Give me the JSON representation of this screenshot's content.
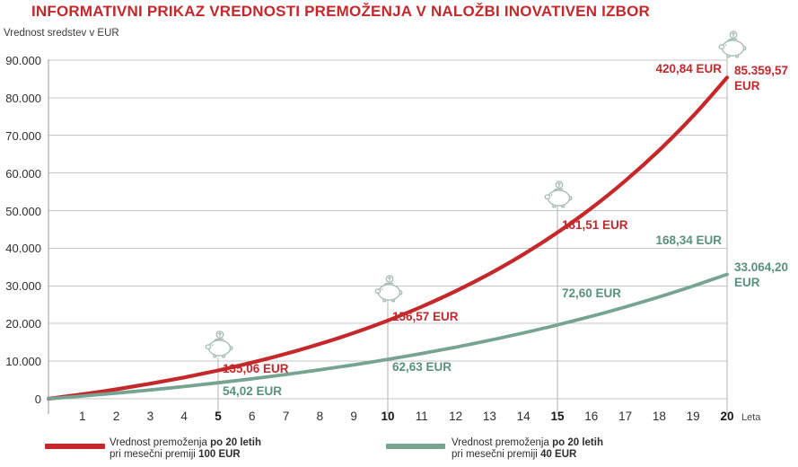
{
  "page": {
    "title": "INFORMATIVNI PRIKAZ VREDNOSTI PREMOŽENJA V NALOŽBI INOVATIVEN IZBOR",
    "y_axis_title": "Vrednost sredstev v EUR",
    "x_axis_unit": "Leta"
  },
  "colors": {
    "red": "#c5282b",
    "green": "#77a391",
    "green_text": "#57917e",
    "grid": "#c6c6c6",
    "axis": "#9a9a9a",
    "callout": "#b3b3b3",
    "piggy": "#a9bfb3",
    "tick_text": "#2f2f2f"
  },
  "chart_data": {
    "type": "line",
    "title": "INFORMATIVNI PRIKAZ VREDNOSTI PREMOŽENJA V NALOŽBI INOVATIVEN IZBOR",
    "xlabel": "Leta",
    "ylabel": "Vrednost sredstev v EUR",
    "x": [
      0,
      1,
      2,
      3,
      4,
      5,
      6,
      7,
      8,
      9,
      10,
      11,
      12,
      13,
      14,
      15,
      16,
      17,
      18,
      19,
      20
    ],
    "x_tick_labels": [
      "1",
      "2",
      "3",
      "4",
      "5",
      "6",
      "7",
      "8",
      "9",
      "10",
      "11",
      "12",
      "13",
      "14",
      "15",
      "16",
      "17",
      "18",
      "19",
      "20"
    ],
    "x_ticks_bold": [
      5,
      10,
      15,
      20
    ],
    "ylim": [
      0,
      90000
    ],
    "y_ticks": [
      0,
      10000,
      20000,
      30000,
      40000,
      50000,
      60000,
      70000,
      80000,
      90000
    ],
    "y_tick_labels": [
      "0",
      "10.000",
      "20.000",
      "30.000",
      "40.000",
      "50.000",
      "60.000",
      "70.000",
      "80.000",
      "90.000"
    ],
    "grid": "horizontal",
    "legend_position": "bottom",
    "series": [
      {
        "id": "red",
        "name": "Vrednost premoženja po 20 letih pri mesečni premiji 100 EUR",
        "color_key": "red",
        "values": [
          0,
          1185,
          2512,
          3998,
          5662,
          7526,
          9614,
          11953,
          14572,
          17505,
          20790,
          24470,
          28591,
          33207,
          38376,
          44166,
          50650,
          57913,
          66048,
          75158,
          85359.57
        ],
        "final_value_label": "85.359,57 EUR"
      },
      {
        "id": "green",
        "name": "Vrednost premoženja po 20 letih pri mesečni premiji 40 EUR",
        "color_key": "green",
        "values": [
          0,
          723,
          1503,
          2346,
          3256,
          4239,
          5300,
          6447,
          7685,
          9023,
          10467,
          12027,
          13711,
          15531,
          17496,
          19618,
          21910,
          24385,
          27059,
          29946,
          33064.2
        ],
        "final_value_label": "33.064,20 EUR"
      }
    ],
    "annotations": [
      {
        "year": 5,
        "red_label": "135,06 EUR",
        "green_label": "54,02 EUR"
      },
      {
        "year": 10,
        "red_label": "156,57 EUR",
        "green_label": "62,63 EUR"
      },
      {
        "year": 15,
        "red_label": "181,51 EUR",
        "green_label": "72,60 EUR"
      },
      {
        "year": 20,
        "red_label": "420,84 EUR",
        "green_label": "168,34 EUR",
        "red_total": "85.359,57 EUR",
        "green_total": "33.064,20 EUR"
      }
    ]
  },
  "legend": {
    "items": [
      {
        "pre": "Vrednost premoženja",
        "bold1": "po 20 letih",
        "pre2": "pri mesečni premiji",
        "bold2": "100 EUR",
        "color_key": "red"
      },
      {
        "pre": "Vrednost premoženja",
        "bold1": "po 20 letih",
        "pre2": "pri mesečni premiji",
        "bold2": "40 EUR",
        "color_key": "green"
      }
    ]
  }
}
